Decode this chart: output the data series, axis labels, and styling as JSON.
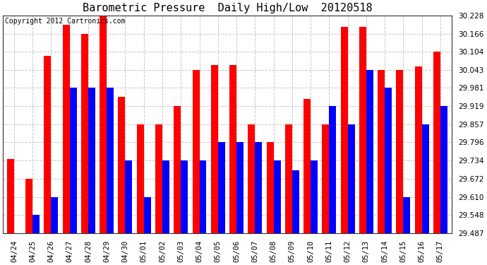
{
  "title": "Barometric Pressure  Daily High/Low  20120518",
  "copyright": "Copyright 2012 Cartronics.com",
  "categories": [
    "04/24",
    "04/25",
    "04/26",
    "04/27",
    "04/28",
    "04/29",
    "04/30",
    "05/01",
    "05/02",
    "05/03",
    "05/04",
    "05/05",
    "05/06",
    "05/07",
    "05/08",
    "05/09",
    "05/10",
    "05/11",
    "05/12",
    "05/13",
    "05/14",
    "05/15",
    "05/16",
    "05/17"
  ],
  "highs": [
    29.74,
    29.672,
    30.09,
    30.195,
    30.166,
    30.228,
    29.95,
    29.857,
    29.857,
    29.92,
    30.043,
    30.06,
    30.06,
    29.857,
    29.796,
    29.857,
    29.943,
    29.857,
    30.19,
    30.19,
    30.043,
    30.043,
    30.055,
    30.104
  ],
  "lows": [
    29.487,
    29.548,
    29.61,
    29.981,
    29.981,
    29.981,
    29.734,
    29.61,
    29.734,
    29.734,
    29.734,
    29.796,
    29.796,
    29.796,
    29.734,
    29.7,
    29.734,
    29.919,
    29.857,
    30.043,
    29.981,
    29.61,
    29.857,
    29.919
  ],
  "bar_color_high": "#ff0000",
  "bar_color_low": "#0000ff",
  "ylim_min": 29.487,
  "ylim_max": 30.228,
  "yticks": [
    29.487,
    29.548,
    29.61,
    29.672,
    29.734,
    29.796,
    29.857,
    29.919,
    29.981,
    30.043,
    30.104,
    30.166,
    30.228
  ],
  "grid_color": "#c8c8c8",
  "background_color": "#ffffff",
  "title_fontsize": 11,
  "tick_fontsize": 7.5,
  "copyright_fontsize": 7
}
